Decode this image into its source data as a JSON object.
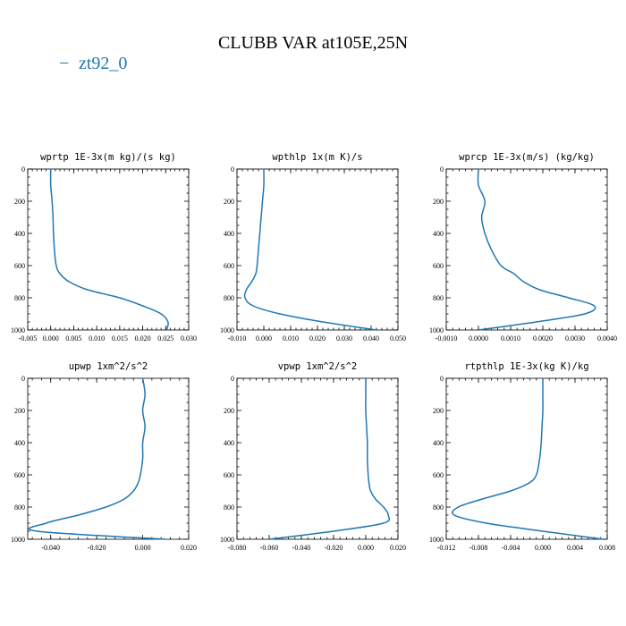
{
  "title": "CLUBB VAR at105E,25N",
  "legend": {
    "label": "zt92_0",
    "dash": "−",
    "color": "#1f77b4"
  },
  "chart_data": [
    {
      "type": "line",
      "title": "wprtp  1E-3x(m kg)/(s kg)",
      "xlim": [
        -0.005,
        0.03
      ],
      "ylim": [
        1000,
        0
      ],
      "xticks": [
        -0.005,
        0.0,
        0.005,
        0.01,
        0.015,
        0.02,
        0.025,
        0.03
      ],
      "xticklabels": [
        "-0.005",
        "0.000",
        "0.005",
        "0.010",
        "0.015",
        "0.020",
        "0.025",
        "0.030"
      ],
      "yticks": [
        0,
        200,
        400,
        600,
        800,
        1000
      ],
      "yticklabels": [
        "0",
        "200",
        "400",
        "600",
        "800",
        "1000"
      ],
      "series": [
        {
          "name": "zt92_0",
          "x": [
            0.0,
            0.0,
            0.0003,
            0.0005,
            0.0006,
            0.0008,
            0.0012,
            0.002,
            0.004,
            0.008,
            0.015,
            0.02,
            0.024,
            0.0255,
            0.0252
          ],
          "y": [
            0,
            100,
            200,
            300,
            400,
            500,
            600,
            650,
            700,
            750,
            800,
            850,
            900,
            950,
            1000
          ]
        }
      ]
    },
    {
      "type": "line",
      "title": "wpthlp  1x(m K)/s",
      "xlim": [
        -0.01,
        0.05
      ],
      "ylim": [
        1000,
        0
      ],
      "xticks": [
        -0.01,
        0.0,
        0.01,
        0.02,
        0.03,
        0.04,
        0.05
      ],
      "xticklabels": [
        "-0.010",
        "0.000",
        "0.010",
        "0.020",
        "0.030",
        "0.040",
        "0.050"
      ],
      "yticks": [
        0,
        200,
        400,
        600,
        800,
        1000
      ],
      "yticklabels": [
        "0",
        "200",
        "400",
        "600",
        "800",
        "1000"
      ],
      "series": [
        {
          "name": "zt92_0",
          "x": [
            0.0,
            0.0,
            -0.0005,
            -0.001,
            -0.0015,
            -0.002,
            -0.0025,
            -0.003,
            -0.0045,
            -0.0065,
            -0.007,
            -0.004,
            0.006,
            0.022,
            0.042
          ],
          "y": [
            0,
            100,
            200,
            300,
            400,
            500,
            600,
            650,
            700,
            750,
            800,
            850,
            900,
            950,
            1000
          ]
        }
      ]
    },
    {
      "type": "line",
      "title": "wprcp  1E-3x(m/s) (kg/kg)",
      "xlim": [
        -0.001,
        0.004
      ],
      "ylim": [
        1000,
        0
      ],
      "xticks": [
        -0.001,
        0.0,
        0.001,
        0.002,
        0.003,
        0.004
      ],
      "xticklabels": [
        "-0.0010",
        "0.0000",
        "0.0010",
        "0.0020",
        "0.0030",
        "0.0040"
      ],
      "yticks": [
        0,
        200,
        400,
        600,
        800,
        1000
      ],
      "yticklabels": [
        "0",
        "200",
        "400",
        "600",
        "800",
        "1000"
      ],
      "series": [
        {
          "name": "zt92_0",
          "x": [
            0.0,
            0.0,
            0.0002,
            0.0001,
            0.0002,
            0.0004,
            0.0007,
            0.0011,
            0.0014,
            0.0019,
            0.0028,
            0.0036,
            0.0033,
            0.0018,
            0.0
          ],
          "y": [
            0,
            100,
            200,
            300,
            400,
            500,
            600,
            650,
            700,
            750,
            800,
            850,
            900,
            950,
            1000
          ]
        }
      ]
    },
    {
      "type": "line",
      "title": "upwp  1xm^2/s^2",
      "xlim": [
        -0.05,
        0.02
      ],
      "ylim": [
        1000,
        0
      ],
      "xticks": [
        -0.04,
        -0.02,
        0.0,
        0.02
      ],
      "xticklabels": [
        "-0.040",
        "-0.020",
        "0.000",
        "0.020"
      ],
      "yticks": [
        0,
        200,
        400,
        600,
        800,
        1000
      ],
      "yticklabels": [
        "0",
        "200",
        "400",
        "600",
        "800",
        "1000"
      ],
      "series": [
        {
          "name": "zt92_0",
          "x": [
            0.0,
            0.001,
            0.0,
            0.001,
            0.0,
            0.0,
            -0.001,
            -0.002,
            -0.004,
            -0.008,
            -0.016,
            -0.028,
            -0.042,
            -0.046,
            0.01
          ],
          "y": [
            0,
            100,
            200,
            300,
            400,
            500,
            600,
            650,
            700,
            750,
            800,
            850,
            900,
            950,
            1000
          ]
        }
      ]
    },
    {
      "type": "line",
      "title": "vpwp  1xm^2/s^2",
      "xlim": [
        -0.08,
        0.02
      ],
      "ylim": [
        1000,
        0
      ],
      "xticks": [
        -0.08,
        -0.06,
        -0.04,
        -0.02,
        0.0,
        0.02
      ],
      "xticklabels": [
        "-0.080",
        "-0.060",
        "-0.040",
        "-0.020",
        "0.000",
        "0.020"
      ],
      "yticks": [
        0,
        200,
        400,
        600,
        800,
        1000
      ],
      "yticklabels": [
        "0",
        "200",
        "400",
        "600",
        "800",
        "1000"
      ],
      "series": [
        {
          "name": "zt92_0",
          "x": [
            0.0,
            0.0,
            0.0,
            0.0005,
            0.001,
            0.001,
            0.0015,
            0.002,
            0.003,
            0.006,
            0.011,
            0.014,
            0.011,
            -0.02,
            -0.06
          ],
          "y": [
            0,
            100,
            200,
            300,
            400,
            500,
            600,
            650,
            700,
            750,
            800,
            850,
            900,
            950,
            1000
          ]
        }
      ]
    },
    {
      "type": "line",
      "title": "rtpthlp  1E-3x(kg K)/kg",
      "xlim": [
        -0.012,
        0.008
      ],
      "ylim": [
        1000,
        0
      ],
      "xticks": [
        -0.012,
        -0.008,
        -0.004,
        0.0,
        0.004,
        0.008
      ],
      "xticklabels": [
        "-0.012",
        "-0.008",
        "-0.004",
        "0.000",
        "0.004",
        "0.008"
      ],
      "yticks": [
        0,
        200,
        400,
        600,
        800,
        1000
      ],
      "yticklabels": [
        "0",
        "200",
        "400",
        "600",
        "800",
        "1000"
      ],
      "series": [
        {
          "name": "zt92_0",
          "x": [
            0.0,
            0.0,
            0.0,
            -0.0001,
            -0.0002,
            -0.0004,
            -0.0008,
            -0.0017,
            -0.004,
            -0.0075,
            -0.0105,
            -0.011,
            -0.007,
            0.0,
            0.0075
          ],
          "y": [
            0,
            100,
            200,
            300,
            400,
            500,
            600,
            650,
            700,
            750,
            800,
            850,
            900,
            950,
            1000
          ]
        }
      ]
    }
  ]
}
